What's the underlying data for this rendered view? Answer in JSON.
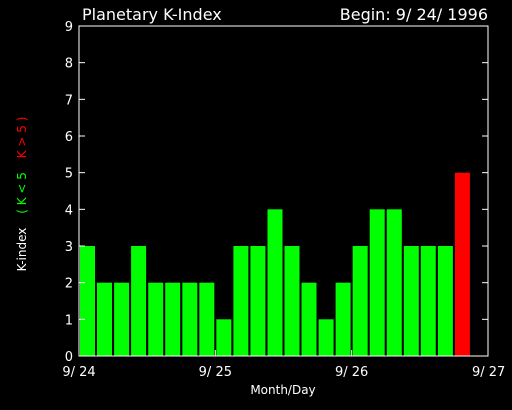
{
  "chart_data": {
    "type": "bar",
    "title": "Planetary K-Index",
    "begin_label": "Begin: 9/ 24/ 1996",
    "xlabel": "Month/Day",
    "ylabel": {
      "main": "K-index",
      "low": "( K < 5",
      "high": "K > 5 )"
    },
    "ylim": [
      0,
      9
    ],
    "yticks": [
      0,
      1,
      2,
      3,
      4,
      5,
      6,
      7,
      8,
      9
    ],
    "xticks": [
      "9/ 24",
      "9/ 25",
      "9/ 26",
      "9/ 27"
    ],
    "values": [
      3,
      2,
      2,
      3,
      2,
      2,
      2,
      2,
      1,
      3,
      3,
      4,
      3,
      2,
      1,
      2,
      3,
      4,
      4,
      3,
      3,
      3,
      5
    ],
    "threshold": 5,
    "colors": {
      "background": "#000000",
      "axis": "#ffffff",
      "low": "#00ff00",
      "high": "#ff0000"
    }
  }
}
